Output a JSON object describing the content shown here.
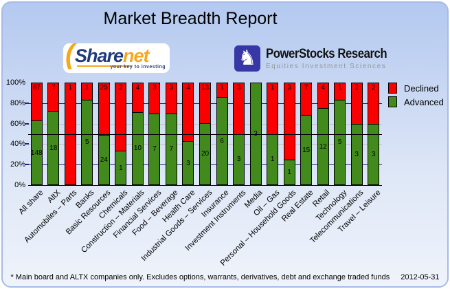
{
  "title": "Market Breadth Report",
  "logos": {
    "sharenet": {
      "part1": "Share",
      "part2": "net",
      "paren": "(",
      "tagline": "your key to investing"
    },
    "powerstocks": {
      "knight_icon": "♞",
      "title": "PowerStocks  Research",
      "subtitle": "Equities Investment Sciences"
    }
  },
  "chart_data": {
    "type": "bar",
    "stacked": true,
    "stack_mode": "percent",
    "categories": [
      "All share",
      "AltX",
      "Automobiles – Parts",
      "Banks",
      "Basic Resources",
      "Chemicals",
      "Construction – Materials",
      "Financial Services",
      "Food – Beverage",
      "Health Care",
      "Industrial Goods – Services",
      "Insurance",
      "Investment Instruments",
      "Media",
      "Oil – Gas",
      "Personal – Household Goods",
      "Real Estate",
      "Retail",
      "Technology",
      "Telecommunications",
      "Travel – Leisure"
    ],
    "series": [
      {
        "name": "Declined",
        "color": "#fb0000",
        "values": [
          87,
          7,
          1,
          1,
          25,
          2,
          4,
          3,
          3,
          4,
          13,
          1,
          3,
          0,
          1,
          3,
          7,
          4,
          1,
          2,
          2
        ]
      },
      {
        "name": "Advanced",
        "color": "#428a1b",
        "values": [
          148,
          18,
          0,
          5,
          24,
          1,
          10,
          7,
          7,
          3,
          20,
          6,
          3,
          3,
          1,
          1,
          15,
          12,
          5,
          3,
          3
        ]
      }
    ],
    "ylim": [
      0,
      100
    ],
    "yticks": [
      "0%",
      "20%",
      "40%",
      "60%",
      "80%",
      "100%"
    ],
    "grid": {
      "navy_levels": [
        20,
        80
      ],
      "grey_levels": [
        40,
        60
      ],
      "black_level": 50,
      "navy_color": "#23238b",
      "grey_color": "#bbbbbb",
      "black_color": "#000000"
    },
    "legend_position": "top-right",
    "bar_label_color": "#000000"
  },
  "footer": {
    "footnote": "* Main board and ALTX companies only. Excludes options, warrants, derivatives, debt and exchange traded funds",
    "date": "2012-05-31"
  }
}
